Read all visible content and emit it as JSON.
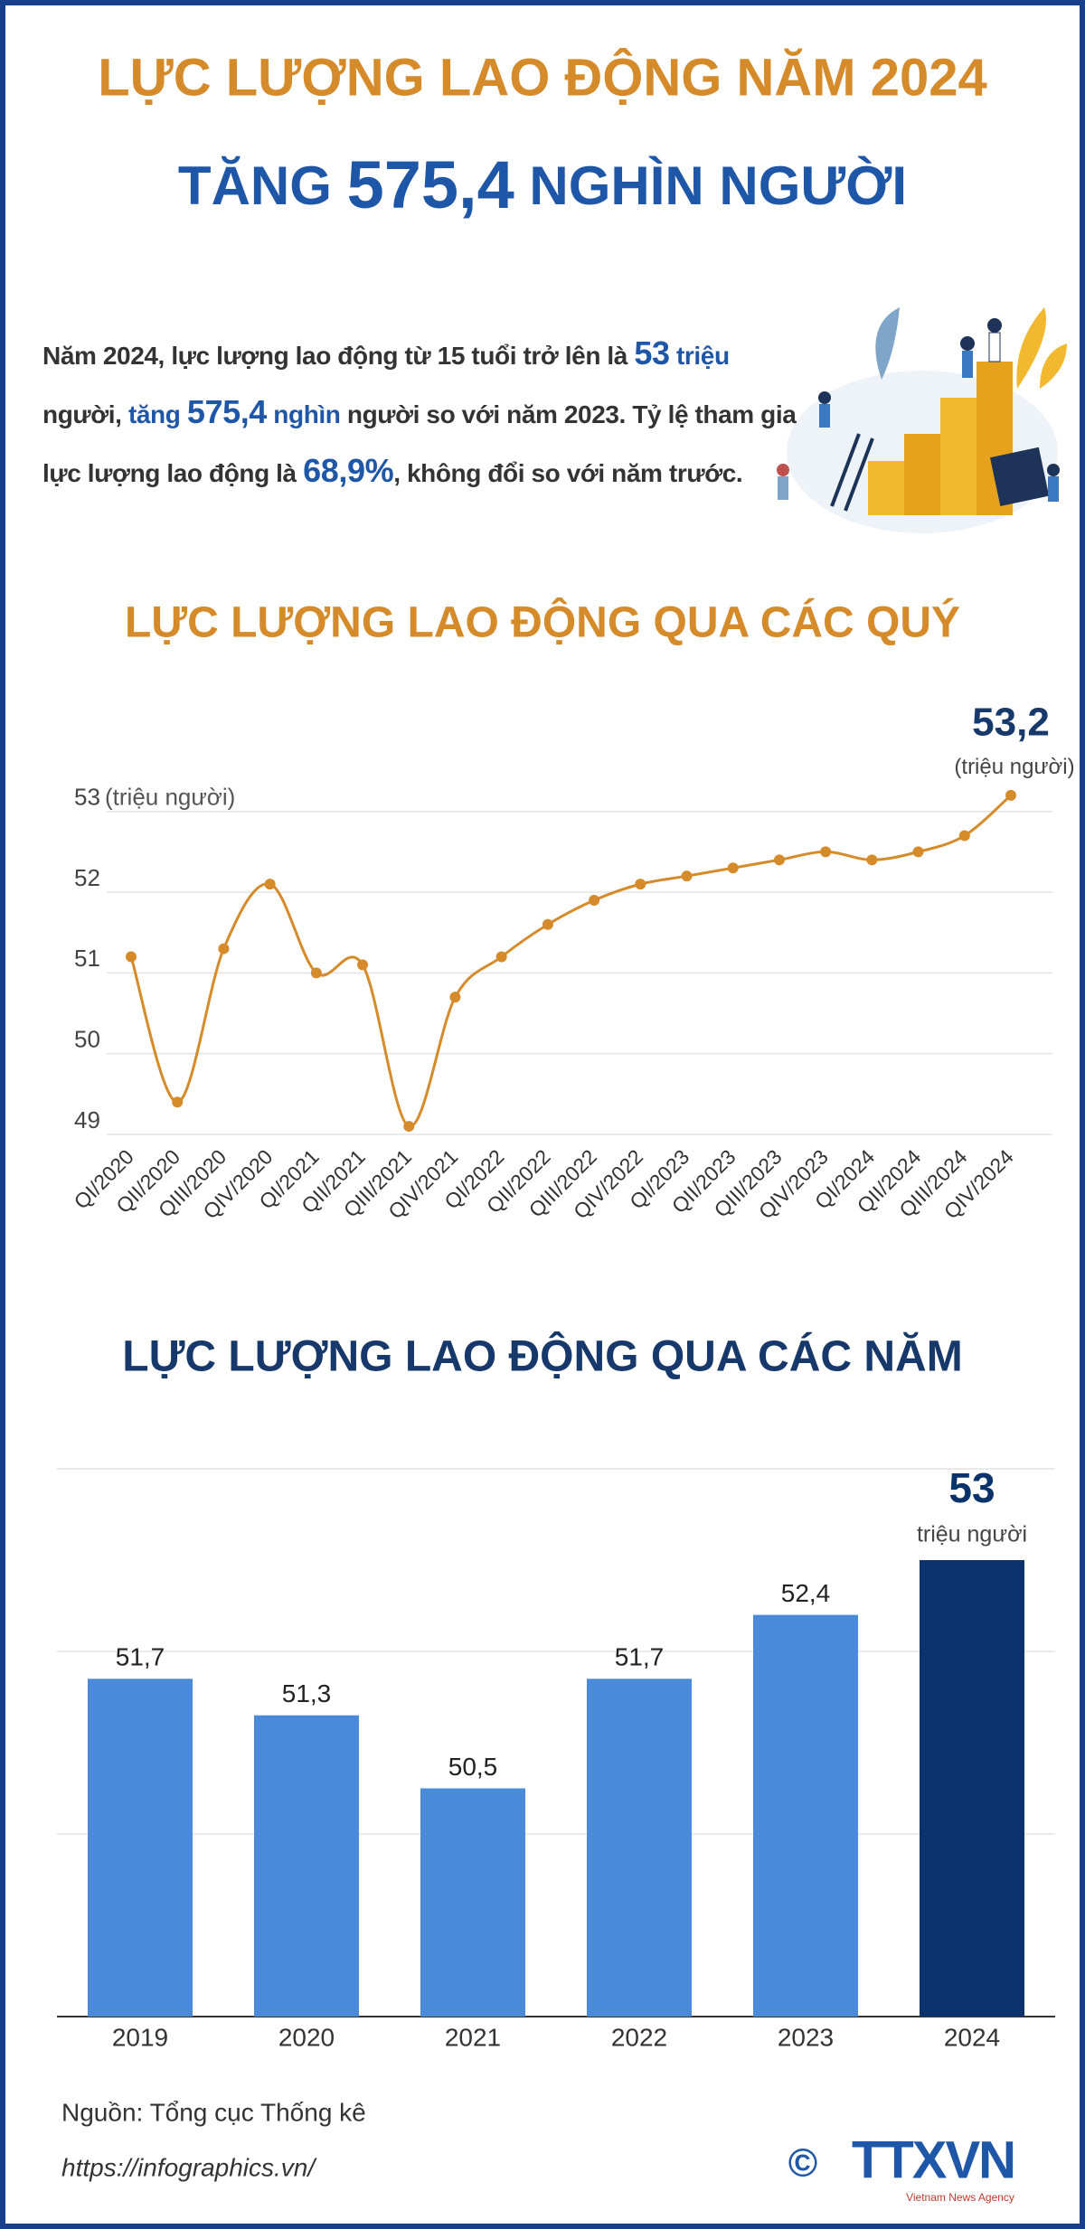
{
  "header": {
    "title": "LỰC LƯỢNG LAO ĐỘNG NĂM 2024",
    "subtitle": [
      {
        "text": "TĂNG ",
        "style": "plain"
      },
      {
        "text": "575,4",
        "style": "big"
      },
      {
        "text": " NGHÌN NGƯỜI",
        "style": "plain"
      }
    ]
  },
  "intro": {
    "segments": [
      {
        "text": "Năm 2024, lực lượng lao động từ 15 tuổi trở lên là ",
        "style": "plain"
      },
      {
        "text": "53",
        "style": "big"
      },
      {
        "text": " triệu",
        "style": "blue"
      },
      {
        "text": " người, ",
        "style": "plain"
      },
      {
        "text": "tăng ",
        "style": "blue"
      },
      {
        "text": "575,4",
        "style": "big"
      },
      {
        "text": " nghìn",
        "style": "blue"
      },
      {
        "text": " người so với năm 2023. Tỷ lệ tham gia lực lượng lao động là ",
        "style": "plain"
      },
      {
        "text": "68,9%",
        "style": "big"
      },
      {
        "text": ", không đổi so với năm trước.",
        "style": "plain"
      }
    ]
  },
  "chart_data": [
    {
      "type": "line",
      "title": "LỰC LƯỢNG LAO ĐỘNG QUA CÁC QUÝ",
      "y_label": "(triệu người)",
      "categories": [
        "QI/2020",
        "QII/2020",
        "QIII/2020",
        "QIV/2020",
        "QI/2021",
        "QII/2021",
        "QIII/2021",
        "QIV/2021",
        "QI/2022",
        "QII/2022",
        "QIII/2022",
        "QIV/2022",
        "QI/2023",
        "QII/2023",
        "QIII/2023",
        "QIV/2023",
        "QI/2024",
        "QII/2024",
        "QIII/2024",
        "QIV/2024"
      ],
      "values": [
        51.2,
        49.4,
        51.3,
        52.1,
        51.0,
        51.1,
        49.1,
        50.7,
        51.2,
        51.6,
        51.9,
        52.1,
        52.2,
        52.3,
        52.4,
        52.5,
        52.4,
        52.5,
        52.7,
        53.2
      ],
      "color": "#d68b2b",
      "ylim": [
        49,
        53.4
      ],
      "yticks": [
        49,
        50,
        51,
        52,
        53
      ],
      "grid": true,
      "highlight_label": "53,2",
      "highlight_unit": "(triệu người)"
    },
    {
      "type": "bar",
      "title": "LỰC LƯỢNG LAO ĐỘNG QUA CÁC NĂM",
      "categories": [
        "2019",
        "2020",
        "2021",
        "2022",
        "2023",
        "2024"
      ],
      "values": [
        51.7,
        51.3,
        50.5,
        51.7,
        52.4,
        53
      ],
      "value_labels": [
        "51,7",
        "51,3",
        "50,5",
        "51,7",
        "52,4",
        "53"
      ],
      "colors": [
        "#4a8bd9",
        "#4a8bd9",
        "#4a8bd9",
        "#4a8bd9",
        "#4a8bd9",
        "#0b336b"
      ],
      "unit_label": "triệu người",
      "ylim": [
        48,
        54
      ],
      "yticks": [
        48,
        50,
        52,
        54
      ],
      "grid": true
    }
  ],
  "footer": {
    "source": "Nguồn: Tổng cục Thống kê",
    "url": "https://infographics.vn/",
    "copyright": "©",
    "logo": "TTXVN",
    "logo_caption": "Vietnam News Agency"
  }
}
